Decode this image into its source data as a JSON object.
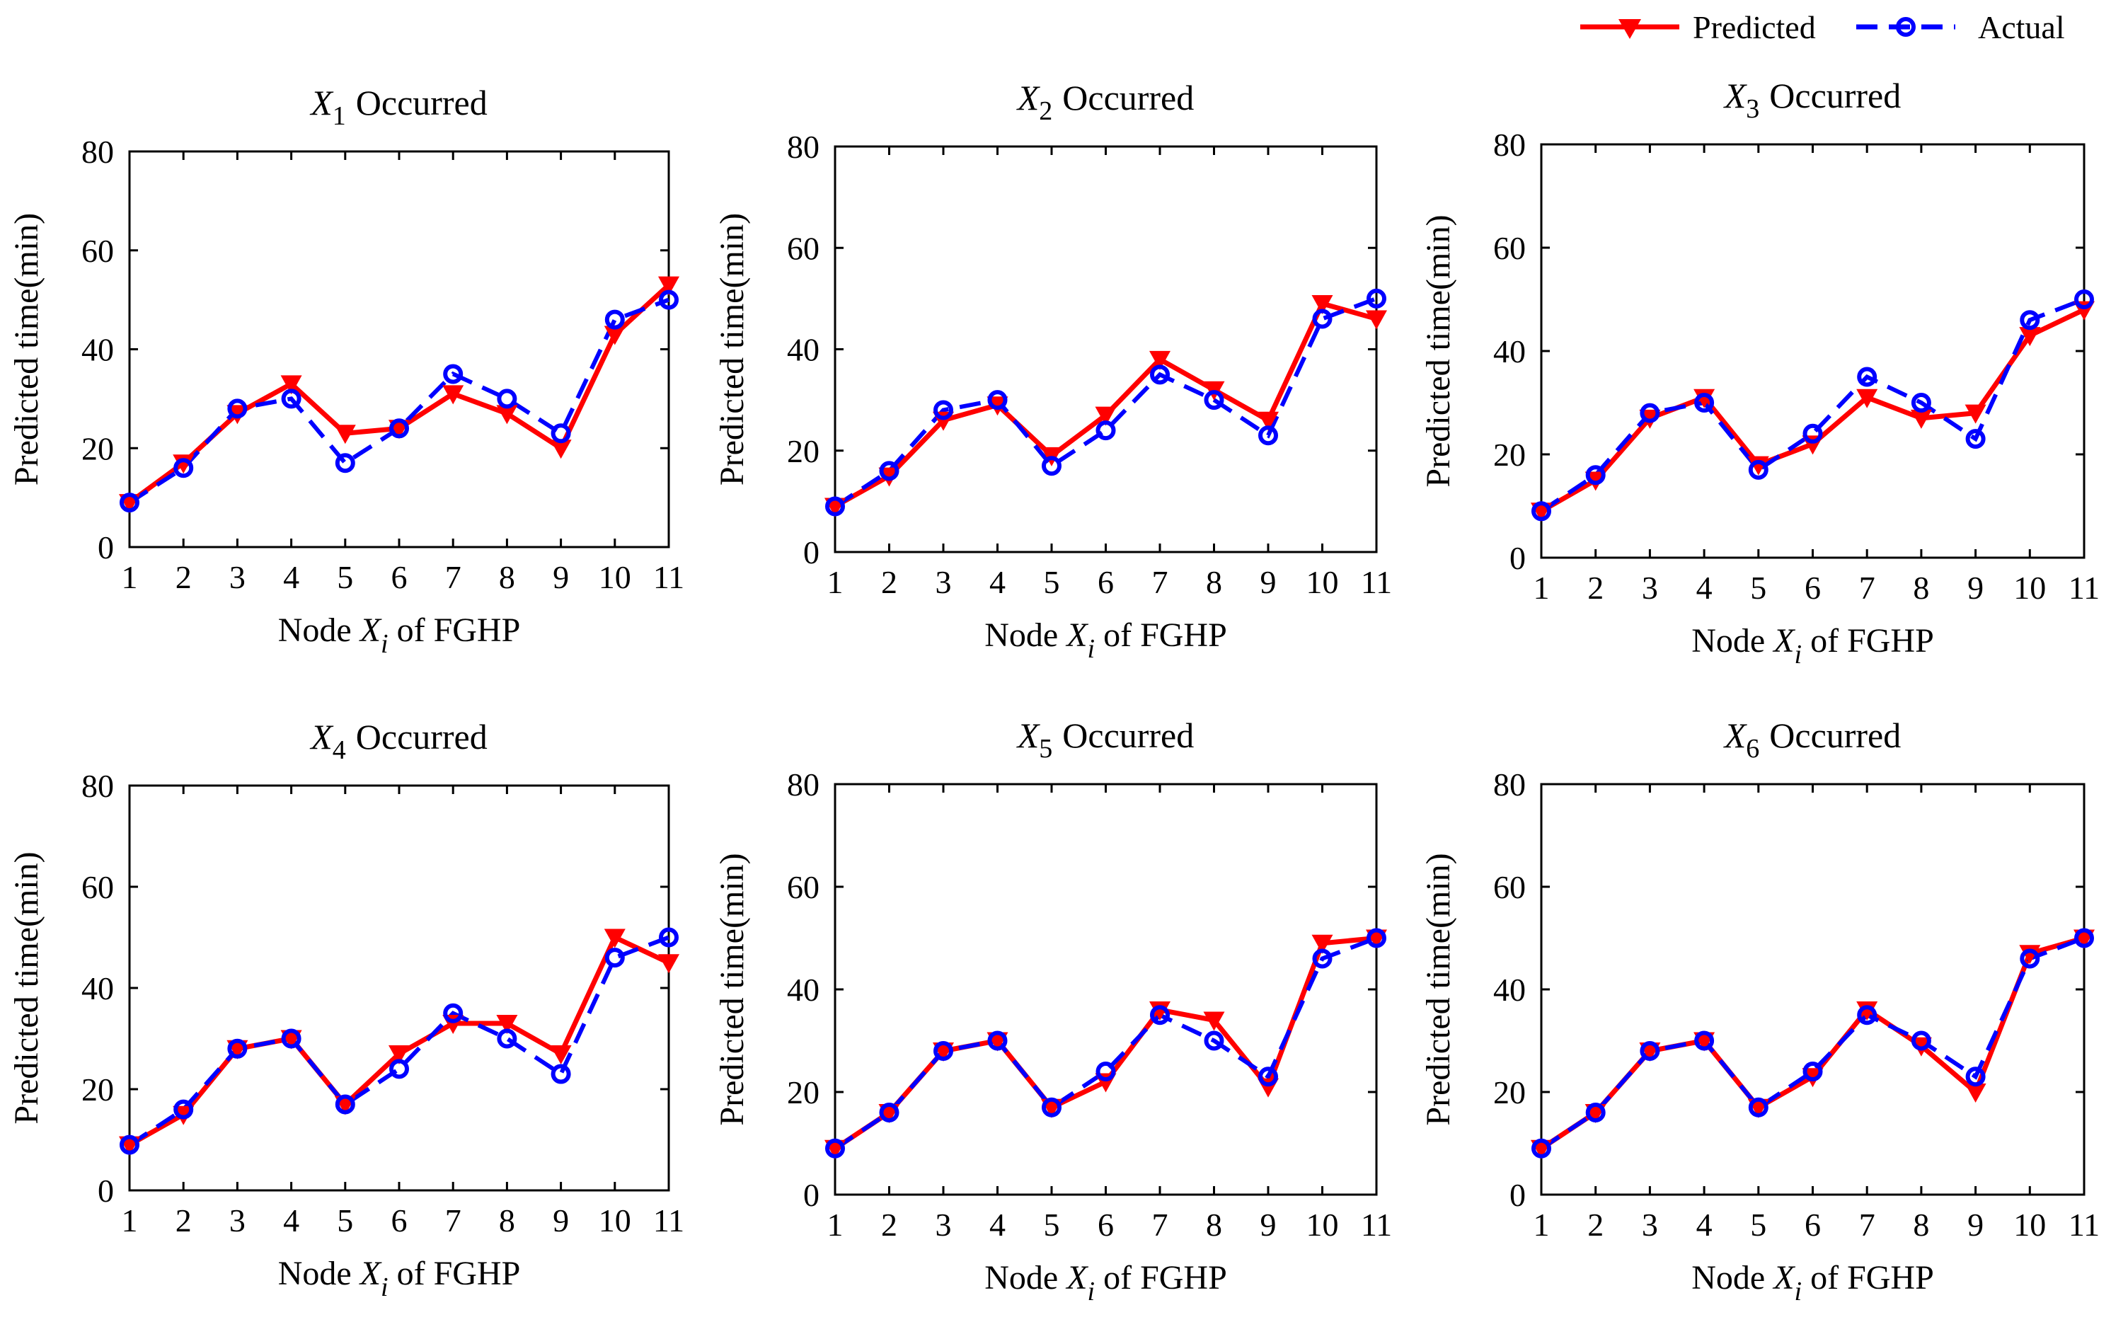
{
  "colors": {
    "predicted": "#ff0000",
    "actual": "#0000ff",
    "axis": "#000000"
  },
  "legend": {
    "predicted_label": "Predicted",
    "actual_label": "Actual"
  },
  "chart_data": [
    {
      "type": "line",
      "title_symbol": "X",
      "title_subscript": "1",
      "title_suffix": "Occurred",
      "ylabel": "Predicted time(min)",
      "xlabel_prefix": "Node ",
      "xlabel_symbol": "X",
      "xlabel_subscript": "i",
      "xlabel_suffix": " of FGHP",
      "x": [
        1,
        2,
        3,
        4,
        5,
        6,
        7,
        8,
        9,
        10,
        11
      ],
      "xlim": [
        1,
        11
      ],
      "ylim": [
        0,
        80
      ],
      "yticks": [
        0,
        20,
        40,
        60,
        80
      ],
      "series": [
        {
          "name": "Predicted",
          "values": [
            9,
            17,
            27,
            33,
            23,
            24,
            31,
            27,
            20,
            43,
            53
          ]
        },
        {
          "name": "Actual",
          "values": [
            9,
            16,
            28,
            30,
            17,
            24,
            35,
            30,
            23,
            46,
            50
          ]
        }
      ]
    },
    {
      "type": "line",
      "title_symbol": "X",
      "title_subscript": "2",
      "title_suffix": "Occurred",
      "ylabel": "Predicted time(min)",
      "xlabel_prefix": "Node ",
      "xlabel_symbol": "X",
      "xlabel_subscript": "i",
      "xlabel_suffix": " of FGHP",
      "x": [
        1,
        2,
        3,
        4,
        5,
        6,
        7,
        8,
        9,
        10,
        11
      ],
      "xlim": [
        1,
        11
      ],
      "ylim": [
        0,
        80
      ],
      "yticks": [
        0,
        20,
        40,
        60,
        80
      ],
      "series": [
        {
          "name": "Predicted",
          "values": [
            9,
            15,
            26,
            29,
            19,
            27,
            38,
            32,
            26,
            49,
            46
          ]
        },
        {
          "name": "Actual",
          "values": [
            9,
            16,
            28,
            30,
            17,
            24,
            35,
            30,
            23,
            46,
            50
          ]
        }
      ]
    },
    {
      "type": "line",
      "title_symbol": "X",
      "title_subscript": "3",
      "title_suffix": "Occurred",
      "ylabel": "Predicted time(min)",
      "xlabel_prefix": "Node ",
      "xlabel_symbol": "X",
      "xlabel_subscript": "i",
      "xlabel_suffix": " of FGHP",
      "x": [
        1,
        2,
        3,
        4,
        5,
        6,
        7,
        8,
        9,
        10,
        11
      ],
      "xlim": [
        1,
        11
      ],
      "ylim": [
        0,
        80
      ],
      "yticks": [
        0,
        20,
        40,
        60,
        80
      ],
      "series": [
        {
          "name": "Predicted",
          "values": [
            9,
            15,
            27,
            31,
            18,
            22,
            31,
            27,
            28,
            43,
            48
          ]
        },
        {
          "name": "Actual",
          "values": [
            9,
            16,
            28,
            30,
            17,
            24,
            35,
            30,
            23,
            46,
            50
          ]
        }
      ]
    },
    {
      "type": "line",
      "title_symbol": "X",
      "title_subscript": "4",
      "title_suffix": "Occurred",
      "ylabel": "Predicted time(min)",
      "xlabel_prefix": "Node ",
      "xlabel_symbol": "X",
      "xlabel_subscript": "i",
      "xlabel_suffix": " of FGHP",
      "x": [
        1,
        2,
        3,
        4,
        5,
        6,
        7,
        8,
        9,
        10,
        11
      ],
      "xlim": [
        1,
        11
      ],
      "ylim": [
        0,
        80
      ],
      "yticks": [
        0,
        20,
        40,
        60,
        80
      ],
      "series": [
        {
          "name": "Predicted",
          "values": [
            9,
            15,
            28,
            30,
            17,
            27,
            33,
            33,
            27,
            50,
            45
          ]
        },
        {
          "name": "Actual",
          "values": [
            9,
            16,
            28,
            30,
            17,
            24,
            35,
            30,
            23,
            46,
            50
          ]
        }
      ]
    },
    {
      "type": "line",
      "title_symbol": "X",
      "title_subscript": "5",
      "title_suffix": "Occurred",
      "ylabel": "Predicted time(min)",
      "xlabel_prefix": "Node ",
      "xlabel_symbol": "X",
      "xlabel_subscript": "i",
      "xlabel_suffix": " of FGHP",
      "x": [
        1,
        2,
        3,
        4,
        5,
        6,
        7,
        8,
        9,
        10,
        11
      ],
      "xlim": [
        1,
        11
      ],
      "ylim": [
        0,
        80
      ],
      "yticks": [
        0,
        20,
        40,
        60,
        80
      ],
      "series": [
        {
          "name": "Predicted",
          "values": [
            9,
            16,
            28,
            30,
            17,
            22,
            36,
            34,
            21,
            49,
            50
          ]
        },
        {
          "name": "Actual",
          "values": [
            9,
            16,
            28,
            30,
            17,
            24,
            35,
            30,
            23,
            46,
            50
          ]
        }
      ]
    },
    {
      "type": "line",
      "title_symbol": "X",
      "title_subscript": "6",
      "title_suffix": "Occurred",
      "ylabel": "Predicted time(min)",
      "xlabel_prefix": "Node ",
      "xlabel_symbol": "X",
      "xlabel_subscript": "i",
      "xlabel_suffix": " of FGHP",
      "x": [
        1,
        2,
        3,
        4,
        5,
        6,
        7,
        8,
        9,
        10,
        11
      ],
      "xlim": [
        1,
        11
      ],
      "ylim": [
        0,
        80
      ],
      "yticks": [
        0,
        20,
        40,
        60,
        80
      ],
      "series": [
        {
          "name": "Predicted",
          "values": [
            9,
            16,
            28,
            30,
            17,
            23,
            36,
            29,
            20,
            47,
            50
          ]
        },
        {
          "name": "Actual",
          "values": [
            9,
            16,
            28,
            30,
            17,
            24,
            35,
            30,
            23,
            46,
            50
          ]
        }
      ]
    }
  ]
}
